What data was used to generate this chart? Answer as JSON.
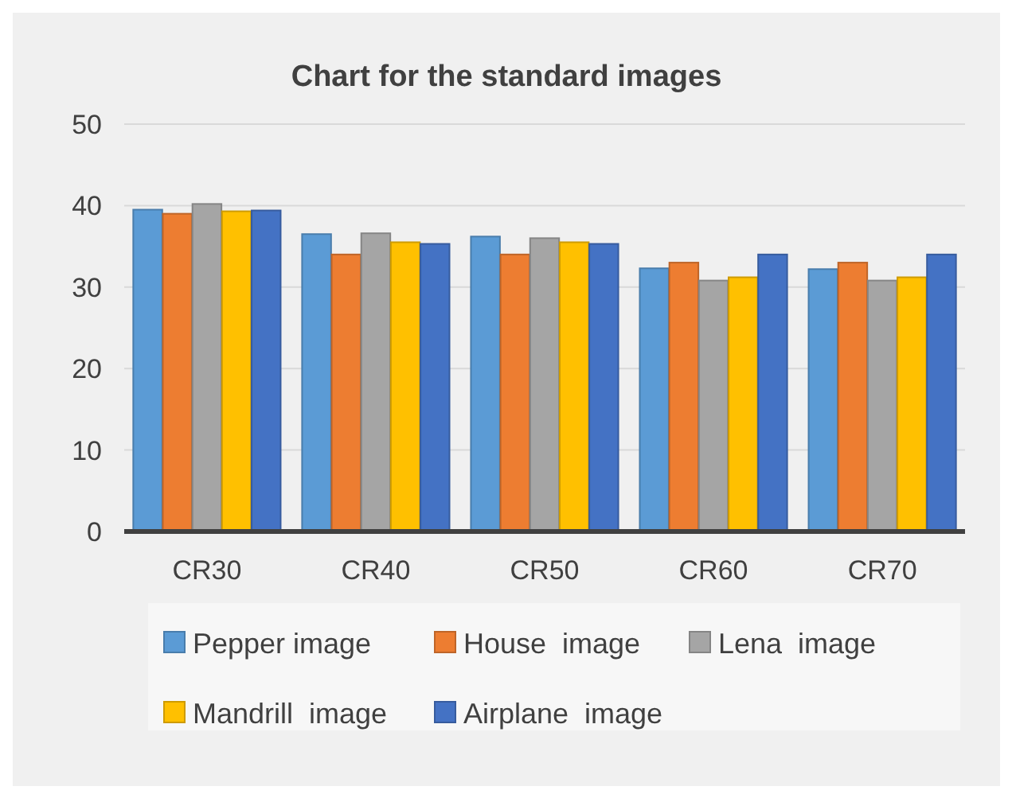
{
  "chart_data": {
    "type": "bar",
    "title": "Chart for the standard images",
    "categories": [
      "CR30",
      "CR40",
      "CR50",
      "CR60",
      "CR70"
    ],
    "series": [
      {
        "name": "Pepper image",
        "color": "#5b9bd5",
        "values": [
          39.5,
          36.5,
          36.2,
          32.3,
          32.2
        ]
      },
      {
        "name": "House  image",
        "color": "#ed7d31",
        "values": [
          39,
          34,
          34,
          33,
          33
        ]
      },
      {
        "name": "Lena  image",
        "color": "#a5a5a5",
        "values": [
          40.2,
          36.6,
          36,
          30.8,
          30.8
        ]
      },
      {
        "name": "Mandrill  image",
        "color": "#ffc000",
        "values": [
          39.3,
          35.5,
          35.5,
          31.2,
          31.2
        ]
      },
      {
        "name": "Airplane  image",
        "color": "#4472c4",
        "values": [
          39.4,
          35.3,
          35.3,
          34,
          34
        ]
      }
    ],
    "ylim": [
      0,
      50
    ],
    "yticks": [
      0,
      10,
      20,
      30,
      40,
      50
    ],
    "grid": true,
    "legend": "bottom"
  }
}
